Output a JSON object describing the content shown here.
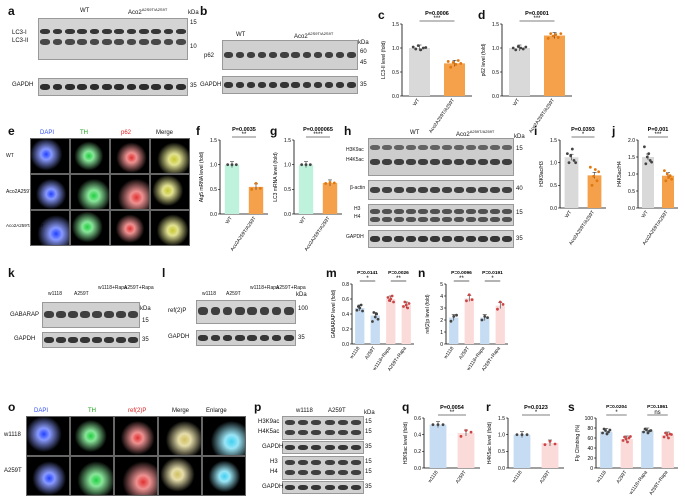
{
  "panels": {
    "a": {
      "label": "a",
      "wt": "WT",
      "mut": "Aco2",
      "mut_sup": "A2S9T/A2S9T",
      "rows": [
        "LC3-I",
        "LC3-II",
        "GAPDH"
      ],
      "kda_title": "kDa",
      "kda": [
        "15",
        "10",
        "35"
      ]
    },
    "b": {
      "label": "b",
      "wt": "WT",
      "mut": "Aco2",
      "mut_sup": "A2S9T/A2S9T",
      "rows": [
        "p62",
        "GAPDH"
      ],
      "kda_title": "kDa",
      "kda": [
        "60",
        "45",
        "35"
      ]
    },
    "c": {
      "label": "c",
      "p": "P=0.0006",
      "stars": "***",
      "ylabel": "LC3-II level (fold)",
      "ticks": [
        "0.0",
        "0.5",
        "1.0",
        "1.5"
      ],
      "xcats": [
        "WT",
        "Aco2A259T/A259T"
      ]
    },
    "d": {
      "label": "d",
      "p": "P=0.0001",
      "stars": "***",
      "ylabel": "p62 level (fold)",
      "ticks": [
        "0.0",
        "0.5",
        "1.0",
        "1.5"
      ],
      "xcats": [
        "WT",
        "Aco2A259T/A259T"
      ]
    },
    "e": {
      "label": "e",
      "cols": [
        "DAPI",
        "TH",
        "p62",
        "Merge"
      ],
      "rows": [
        "WT",
        "Aco2A259T",
        "Aco2A259T/A259T"
      ]
    },
    "f": {
      "label": "f",
      "p": "P=0.0035",
      "stars": "**",
      "ylabel": "Atg5 mRNA level (fold)",
      "ticks": [
        "0.0",
        "0.5",
        "1.0",
        "1.5"
      ],
      "xcats": [
        "WT",
        "Aco2A259T/A259T"
      ]
    },
    "g": {
      "label": "g",
      "p": "P=0.000065",
      "stars": "****",
      "ylabel": "LC3 mRNA level (fold)",
      "ticks": [
        "0.0",
        "0.5",
        "1.0",
        "1.5"
      ],
      "xcats": [
        "WT",
        "Aco2A259T/A259T"
      ]
    },
    "h": {
      "label": "h",
      "wt": "WT",
      "mut": "Aco2",
      "mut_sup": "A259T/A259T",
      "rows": [
        "H3K9ac",
        "H4K5ac",
        "β-actin",
        "H3",
        "H4",
        "GAPDH"
      ],
      "kda_title": "kDa",
      "kda": [
        "15",
        "40",
        "15",
        "35"
      ]
    },
    "i": {
      "label": "i",
      "p": "P=0.0393",
      "stars": "*",
      "ylabel": "H3K9ac/H3",
      "ticks": [
        "0.0",
        "0.5",
        "1.0",
        "1.5"
      ],
      "xcats": [
        "WT",
        "Aco2A259T/A259T"
      ]
    },
    "j": {
      "label": "j",
      "p": "P=0.001",
      "stars": "***",
      "ylabel": "H4K5ac/H4",
      "ticks": [
        "0.0",
        "0.5",
        "1.0",
        "1.5",
        "2.0"
      ],
      "xcats": [
        "WT",
        "Aco2A259T/A259T"
      ]
    },
    "k": {
      "label": "k",
      "cols": [
        "w1118",
        "A259T",
        "w1118+Rapa",
        "A259T+Rapa"
      ],
      "rows": [
        "GABARAP",
        "GAPDH"
      ],
      "kda_title": "kDa",
      "kda": [
        "15",
        "35"
      ]
    },
    "l": {
      "label": "l",
      "cols": [
        "w1118",
        "A259T",
        "w1118+Rapa",
        "A259T+Rapa"
      ],
      "rows": [
        "ref(2)P",
        "GAPDH"
      ],
      "kda_title": "kDa",
      "kda": [
        "100",
        "35"
      ]
    },
    "m": {
      "label": "m",
      "p1": "P=0.0141",
      "s1": "*",
      "p2": "P=0.0026",
      "s2": "**",
      "ylabel": "GABARAP level (fold)",
      "ticks": [
        "0.0",
        "0.2",
        "0.4",
        "0.6",
        "0.8"
      ],
      "xcats": [
        "w1118",
        "A259T",
        "w1118+Rapa",
        "A259T+Rapa"
      ]
    },
    "n": {
      "label": "n",
      "p1": "P=0.0096",
      "s1": "**",
      "p2": "P=0.0191",
      "s2": "*",
      "ylabel": "ref(2)p level (fold)",
      "ticks": [
        "0",
        "1",
        "2",
        "3",
        "4",
        "5"
      ],
      "xcats": [
        "w1118",
        "A259T",
        "w1118+Rapa",
        "A259T+Rapa"
      ]
    },
    "o": {
      "label": "o",
      "cols": [
        "DAPI",
        "TH",
        "ref(2)P",
        "Merge",
        "Enlarge"
      ],
      "rows": [
        "w1118",
        "A259T"
      ]
    },
    "p": {
      "label": "p",
      "cols": [
        "w1118",
        "A259T"
      ],
      "rows": [
        "H3K9ac",
        "H4K5ac",
        "GAPDH",
        "H3",
        "H4",
        "GAPDH"
      ],
      "kda_title": "kDa",
      "kda": [
        "15",
        "15",
        "35",
        "15",
        "15",
        "35"
      ]
    },
    "q": {
      "label": "q",
      "p": "P=0.0054",
      "stars": "**",
      "ylabel": "H3K9ac level (fold)",
      "ticks": [
        "0.0",
        "0.2",
        "0.4",
        "0.6"
      ],
      "xcats": [
        "w1118",
        "A259T"
      ]
    },
    "r": {
      "label": "r",
      "p": "P=0.0123",
      "stars": "*",
      "ylabel": "H4K5ac level (fold)",
      "ticks": [
        "0.0",
        "0.5",
        "1.0",
        "1.5"
      ],
      "xcats": [
        "w1118",
        "A259T"
      ]
    },
    "s": {
      "label": "s",
      "p1": "P=0.0204",
      "s1": "*",
      "p2": "P=0.1861",
      "s2": "ns",
      "ylabel": "Fly Climbing (%)",
      "ticks": [
        "0",
        "20",
        "40",
        "60",
        "80",
        "100"
      ],
      "xcats": [
        "w1118",
        "A259T",
        "w1118+Rapa",
        "A259T+Rapa"
      ]
    }
  },
  "colors": {
    "wt": "#d9d9d9",
    "mut": "#f5a04a",
    "flyA": "#c6dcf2",
    "flyB": "#f7d2d2",
    "mintA": "#bff2dc",
    "pinkA": "#fbdada"
  },
  "chart_data": [
    {
      "panel": "c",
      "type": "bar",
      "categories": [
        "WT",
        "Aco2A259T/A259T"
      ],
      "values": [
        1.0,
        0.68
      ],
      "ylim": [
        0,
        1.5
      ],
      "points": [
        [
          1.02,
          0.98,
          1.05,
          0.96,
          1.0,
          1.01
        ],
        [
          0.72,
          0.6,
          0.7,
          0.66,
          0.74,
          0.68
        ]
      ]
    },
    {
      "panel": "d",
      "type": "bar",
      "categories": [
        "WT",
        "Aco2A259T/A259T"
      ],
      "values": [
        1.0,
        1.26
      ],
      "ylim": [
        0,
        1.5
      ],
      "points": [
        [
          1.0,
          0.96,
          1.03,
          1.0,
          0.98,
          1.02
        ],
        [
          1.2,
          1.3,
          1.25,
          1.28,
          1.22,
          1.3
        ]
      ]
    },
    {
      "panel": "f",
      "type": "bar",
      "categories": [
        "WT",
        "Aco2A259T/A259T"
      ],
      "values": [
        1.0,
        0.55
      ],
      "ylim": [
        0,
        1.5
      ],
      "points": [
        [
          1.0,
          1.0,
          1.0
        ],
        [
          0.5,
          0.62,
          0.52
        ]
      ]
    },
    {
      "panel": "g",
      "type": "bar",
      "categories": [
        "WT",
        "Aco2A259T/A259T"
      ],
      "values": [
        1.0,
        0.63
      ],
      "ylim": [
        0,
        1.5
      ],
      "points": [
        [
          1.0,
          1.0,
          1.0
        ],
        [
          0.62,
          0.64,
          0.63
        ]
      ]
    },
    {
      "panel": "i",
      "type": "bar",
      "categories": [
        "WT",
        "Aco2A259T/A259T"
      ],
      "values": [
        1.12,
        0.72
      ],
      "ylim": [
        0,
        1.5
      ],
      "points": [
        [
          1.2,
          1.0,
          1.15,
          1.3,
          1.05,
          1.0
        ],
        [
          0.9,
          0.5,
          0.7,
          0.85,
          0.6,
          0.8
        ]
      ]
    },
    {
      "panel": "j",
      "type": "bar",
      "categories": [
        "WT",
        "Aco2A259T/A259T"
      ],
      "values": [
        1.5,
        0.95
      ],
      "ylim": [
        0,
        2.0
      ],
      "points": [
        [
          1.8,
          1.3,
          1.5,
          1.6,
          1.4,
          1.35
        ],
        [
          1.1,
          0.8,
          1.0,
          0.9,
          0.95,
          0.85
        ]
      ]
    },
    {
      "panel": "m",
      "type": "bar",
      "categories": [
        "w1118",
        "A259T",
        "w1118+Rapa",
        "A259T+Rapa"
      ],
      "values": [
        0.48,
        0.38,
        0.6,
        0.52
      ],
      "ylim": [
        0,
        0.8
      ],
      "points": [
        [
          0.45,
          0.5,
          0.48,
          0.52,
          0.44
        ],
        [
          0.3,
          0.42,
          0.36,
          0.4,
          0.33
        ],
        [
          0.62,
          0.58,
          0.6,
          0.64,
          0.56
        ],
        [
          0.5,
          0.56,
          0.52,
          0.48,
          0.54
        ]
      ]
    },
    {
      "panel": "n",
      "type": "bar",
      "categories": [
        "w1118",
        "A259T",
        "w1118+Rapa",
        "A259T+Rapa"
      ],
      "values": [
        2.2,
        3.8,
        2.2,
        3.2
      ],
      "ylim": [
        0,
        5
      ],
      "points": [
        [
          1.9,
          2.3,
          2.4
        ],
        [
          3.6,
          4.1,
          3.7
        ],
        [
          2.0,
          2.3,
          2.2
        ],
        [
          2.9,
          3.5,
          3.3
        ]
      ]
    },
    {
      "panel": "q",
      "type": "bar",
      "categories": [
        "w1118",
        "A259T"
      ],
      "values": [
        0.52,
        0.42
      ],
      "ylim": [
        0,
        0.6
      ],
      "points": [
        [
          0.52,
          0.52,
          0.52
        ],
        [
          0.38,
          0.45,
          0.43
        ]
      ]
    },
    {
      "panel": "r",
      "type": "bar",
      "categories": [
        "w1118",
        "A259T"
      ],
      "values": [
        1.0,
        0.75
      ],
      "ylim": [
        0,
        1.5
      ],
      "points": [
        [
          1.0,
          1.0,
          1.0
        ],
        [
          0.7,
          0.8,
          0.72
        ]
      ]
    },
    {
      "panel": "s",
      "type": "bar",
      "categories": [
        "w1118",
        "A259T",
        "w1118+Rapa",
        "A259T+Rapa"
      ],
      "values": [
        73,
        58,
        74,
        66
      ],
      "ylim": [
        0,
        100
      ],
      "points": [
        [
          70,
          78,
          75,
          68,
          72,
          76
        ],
        [
          55,
          62,
          58,
          52,
          60,
          63
        ],
        [
          72,
          78,
          76,
          70,
          74,
          75
        ],
        [
          62,
          70,
          66,
          60,
          68,
          67
        ]
      ]
    }
  ]
}
